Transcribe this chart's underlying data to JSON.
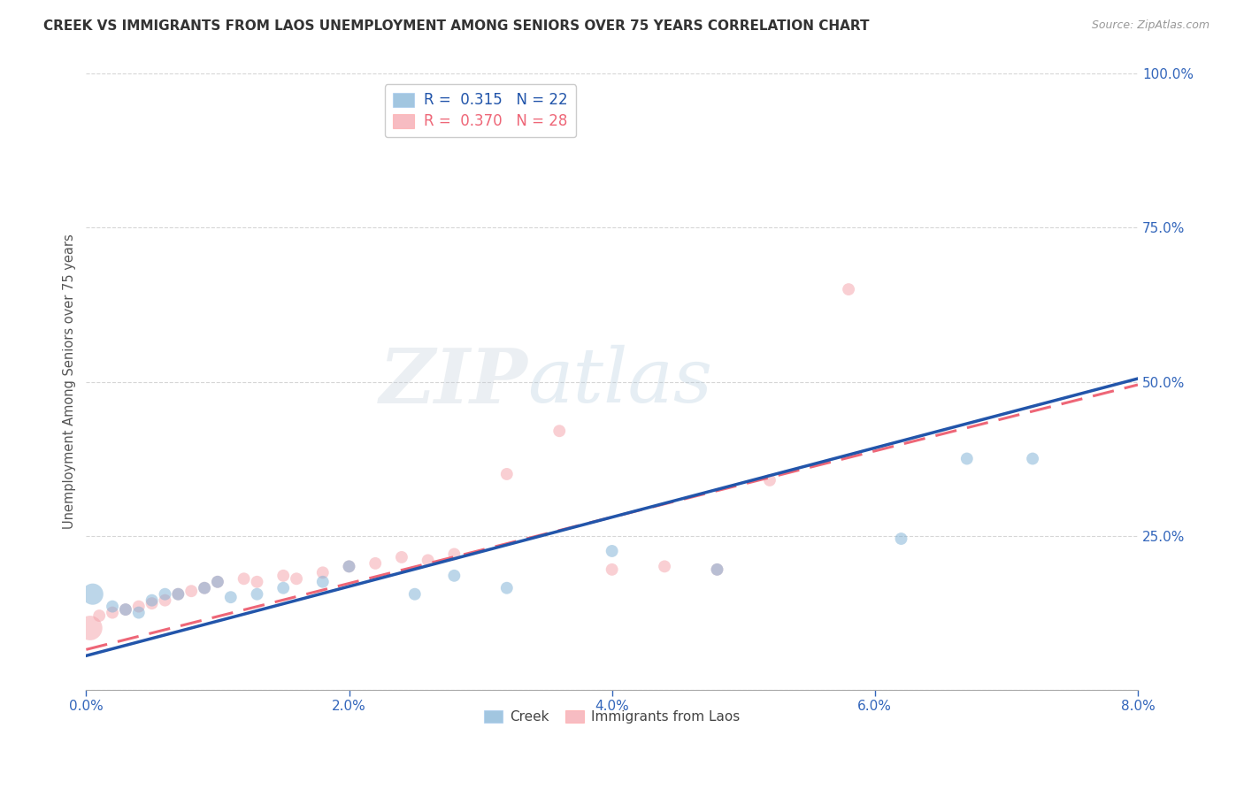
{
  "title": "CREEK VS IMMIGRANTS FROM LAOS UNEMPLOYMENT AMONG SENIORS OVER 75 YEARS CORRELATION CHART",
  "source": "Source: ZipAtlas.com",
  "ylabel": "Unemployment Among Seniors over 75 years",
  "xlim": [
    0.0,
    0.08
  ],
  "ylim": [
    0.0,
    1.0
  ],
  "xticks": [
    0.0,
    0.02,
    0.04,
    0.06,
    0.08
  ],
  "xtick_labels": [
    "0.0%",
    "2.0%",
    "4.0%",
    "6.0%",
    "8.0%"
  ],
  "yticks": [
    0.0,
    0.25,
    0.5,
    0.75,
    1.0
  ],
  "ytick_labels": [
    "",
    "25.0%",
    "50.0%",
    "75.0%",
    "100.0%"
  ],
  "creek_color": "#7BAFD4",
  "laos_color": "#F4A0A8",
  "creek_line_color": "#2255AA",
  "laos_line_color": "#EE6677",
  "legend_creek_label": "Creek",
  "legend_laos_label": "Immigrants from Laos",
  "creek_R": "0.315",
  "creek_N": "22",
  "laos_R": "0.370",
  "laos_N": "28",
  "creek_x": [
    0.0005,
    0.002,
    0.003,
    0.004,
    0.005,
    0.006,
    0.007,
    0.009,
    0.01,
    0.011,
    0.013,
    0.015,
    0.018,
    0.02,
    0.025,
    0.028,
    0.032,
    0.04,
    0.048,
    0.062,
    0.067,
    0.072
  ],
  "creek_y": [
    0.155,
    0.135,
    0.13,
    0.125,
    0.145,
    0.155,
    0.155,
    0.165,
    0.175,
    0.15,
    0.155,
    0.165,
    0.175,
    0.2,
    0.155,
    0.185,
    0.165,
    0.225,
    0.195,
    0.245,
    0.375,
    0.375
  ],
  "creek_sizes": [
    300,
    100,
    100,
    100,
    100,
    100,
    100,
    100,
    100,
    100,
    100,
    100,
    100,
    100,
    100,
    100,
    100,
    100,
    100,
    100,
    100,
    100
  ],
  "laos_x": [
    0.0003,
    0.001,
    0.002,
    0.003,
    0.004,
    0.005,
    0.006,
    0.007,
    0.008,
    0.009,
    0.01,
    0.012,
    0.013,
    0.015,
    0.016,
    0.018,
    0.02,
    0.022,
    0.024,
    0.026,
    0.028,
    0.032,
    0.036,
    0.04,
    0.044,
    0.048,
    0.052,
    0.058
  ],
  "laos_y": [
    0.1,
    0.12,
    0.125,
    0.13,
    0.135,
    0.14,
    0.145,
    0.155,
    0.16,
    0.165,
    0.175,
    0.18,
    0.175,
    0.185,
    0.18,
    0.19,
    0.2,
    0.205,
    0.215,
    0.21,
    0.22,
    0.35,
    0.42,
    0.195,
    0.2,
    0.195,
    0.34,
    0.65
  ],
  "laos_sizes": [
    400,
    100,
    100,
    100,
    100,
    100,
    100,
    100,
    100,
    100,
    100,
    100,
    100,
    100,
    100,
    100,
    100,
    100,
    100,
    100,
    100,
    100,
    100,
    100,
    100,
    100,
    100,
    100
  ],
  "creek_line_x": [
    0.0,
    0.08
  ],
  "creek_line_y": [
    0.055,
    0.505
  ],
  "laos_line_x": [
    0.0,
    0.08
  ],
  "laos_line_y": [
    0.065,
    0.495
  ]
}
